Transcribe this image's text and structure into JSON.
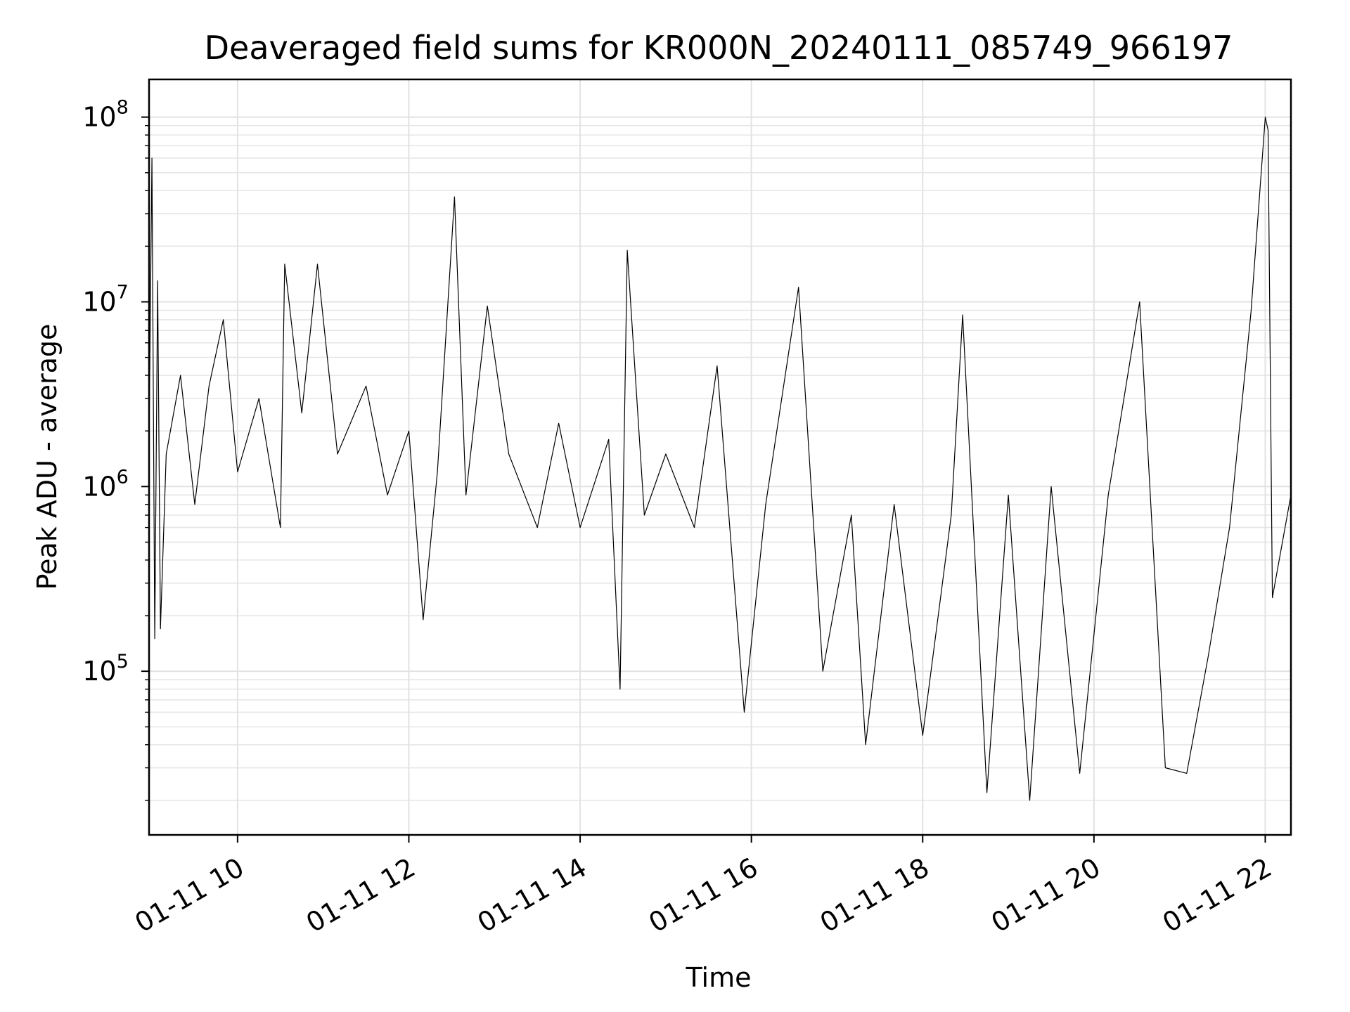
{
  "chart_data": {
    "type": "line",
    "title": "Deaveraged field sums for KR000N_20240111_085749_966197",
    "xlabel": "Time",
    "ylabel": "Peak ADU - average",
    "yscale": "log",
    "ylim": [
      13000,
      160000000
    ],
    "xlim": [
      "2024-01-11 08:58",
      "2024-01-11 22:18"
    ],
    "grid": true,
    "line_color": "#000000",
    "x_ticks": [
      {
        "value": "2024-01-11 10:00",
        "label": "01-11 10"
      },
      {
        "value": "2024-01-11 12:00",
        "label": "01-11 12"
      },
      {
        "value": "2024-01-11 14:00",
        "label": "01-11 14"
      },
      {
        "value": "2024-01-11 16:00",
        "label": "01-11 16"
      },
      {
        "value": "2024-01-11 18:00",
        "label": "01-11 18"
      },
      {
        "value": "2024-01-11 20:00",
        "label": "01-11 20"
      },
      {
        "value": "2024-01-11 22:00",
        "label": "01-11 22"
      }
    ],
    "y_ticks": [
      {
        "value": 100000,
        "base": "10",
        "exp": "5"
      },
      {
        "value": 1000000,
        "base": "10",
        "exp": "6"
      },
      {
        "value": 10000000,
        "base": "10",
        "exp": "7"
      },
      {
        "value": 100000000,
        "base": "10",
        "exp": "8"
      }
    ],
    "series": [
      {
        "points": [
          [
            "2024-01-11 08:58",
            1800000
          ],
          [
            "2024-01-11 09:00",
            60000000
          ],
          [
            "2024-01-11 09:02",
            150000
          ],
          [
            "2024-01-11 09:04",
            13000000
          ],
          [
            "2024-01-11 09:06",
            170000
          ],
          [
            "2024-01-11 09:10",
            1500000
          ],
          [
            "2024-01-11 09:20",
            4000000
          ],
          [
            "2024-01-11 09:30",
            800000
          ],
          [
            "2024-01-11 09:40",
            3500000
          ],
          [
            "2024-01-11 09:50",
            8000000
          ],
          [
            "2024-01-11 10:00",
            1200000
          ],
          [
            "2024-01-11 10:15",
            3000000
          ],
          [
            "2024-01-11 10:30",
            600000
          ],
          [
            "2024-01-11 10:33",
            16000000
          ],
          [
            "2024-01-11 10:45",
            2500000
          ],
          [
            "2024-01-11 10:56",
            16000000
          ],
          [
            "2024-01-11 11:10",
            1500000
          ],
          [
            "2024-01-11 11:30",
            3500000
          ],
          [
            "2024-01-11 11:45",
            900000
          ],
          [
            "2024-01-11 12:00",
            2000000
          ],
          [
            "2024-01-11 12:10",
            190000
          ],
          [
            "2024-01-11 12:20",
            1200000
          ],
          [
            "2024-01-11 12:32",
            37000000
          ],
          [
            "2024-01-11 12:40",
            900000
          ],
          [
            "2024-01-11 12:55",
            9500000
          ],
          [
            "2024-01-11 13:10",
            1500000
          ],
          [
            "2024-01-11 13:30",
            600000
          ],
          [
            "2024-01-11 13:45",
            2200000
          ],
          [
            "2024-01-11 14:00",
            600000
          ],
          [
            "2024-01-11 14:20",
            1800000
          ],
          [
            "2024-01-11 14:28",
            80000
          ],
          [
            "2024-01-11 14:33",
            19000000
          ],
          [
            "2024-01-11 14:45",
            700000
          ],
          [
            "2024-01-11 15:00",
            1500000
          ],
          [
            "2024-01-11 15:20",
            600000
          ],
          [
            "2024-01-11 15:36",
            4500000
          ],
          [
            "2024-01-11 15:55",
            60000
          ],
          [
            "2024-01-11 16:10",
            800000
          ],
          [
            "2024-01-11 16:33",
            12000000
          ],
          [
            "2024-01-11 16:50",
            100000
          ],
          [
            "2024-01-11 17:10",
            700000
          ],
          [
            "2024-01-11 17:20",
            40000
          ],
          [
            "2024-01-11 17:40",
            800000
          ],
          [
            "2024-01-11 18:00",
            45000
          ],
          [
            "2024-01-11 18:20",
            700000
          ],
          [
            "2024-01-11 18:28",
            8500000
          ],
          [
            "2024-01-11 18:45",
            22000
          ],
          [
            "2024-01-11 19:00",
            900000
          ],
          [
            "2024-01-11 19:15",
            20000
          ],
          [
            "2024-01-11 19:30",
            1000000
          ],
          [
            "2024-01-11 19:50",
            28000
          ],
          [
            "2024-01-11 20:10",
            900000
          ],
          [
            "2024-01-11 20:32",
            10000000
          ],
          [
            "2024-01-11 20:50",
            30000
          ],
          [
            "2024-01-11 21:05",
            28000
          ],
          [
            "2024-01-11 21:20",
            120000
          ],
          [
            "2024-01-11 21:35",
            600000
          ],
          [
            "2024-01-11 21:50",
            8800000
          ],
          [
            "2024-01-11 22:00",
            100000000
          ],
          [
            "2024-01-11 22:02",
            85000000
          ],
          [
            "2024-01-11 22:05",
            250000
          ],
          [
            "2024-01-11 22:18",
            900000
          ]
        ]
      }
    ]
  }
}
